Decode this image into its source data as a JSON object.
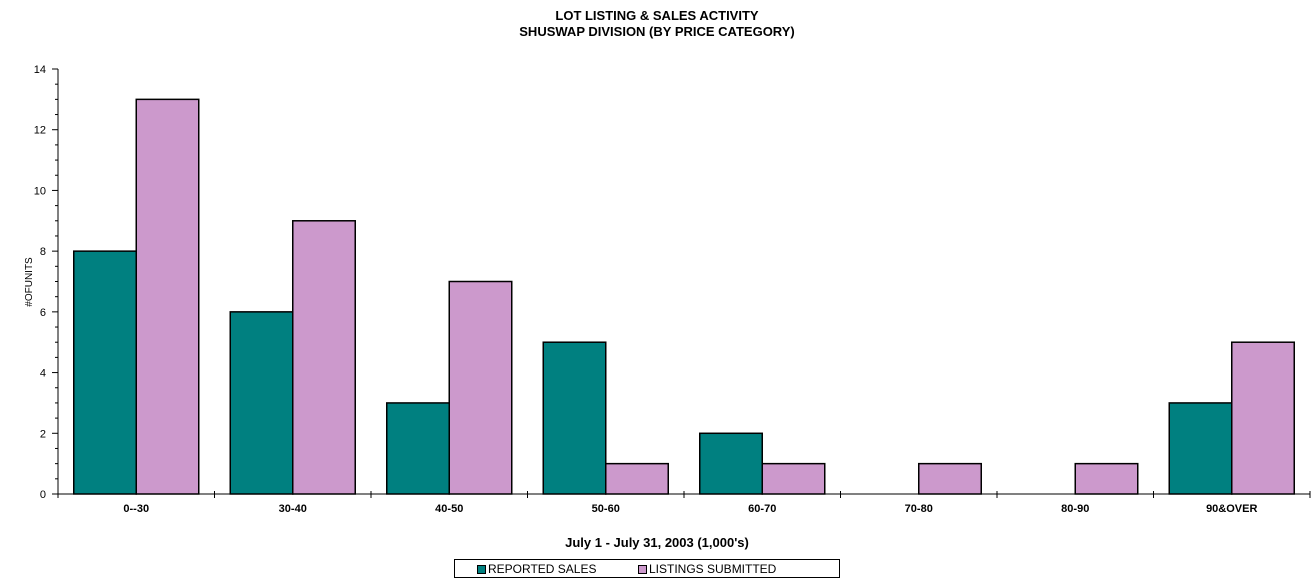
{
  "chart_data": {
    "type": "bar",
    "title": "LOT LISTING & SALES ACTIVITY",
    "subtitle": "SHUSWAP DIVISION (BY PRICE CATEGORY)",
    "xlabel": "July 1 - July 31, 2003 (1,000's)",
    "ylabel": "#OFUNITS",
    "ylim": [
      0,
      14
    ],
    "yticks": [
      0,
      2,
      4,
      6,
      8,
      10,
      12,
      14
    ],
    "categories": [
      "0--30",
      "30-40",
      "40-50",
      "50-60",
      "60-70",
      "70-80",
      "80-90",
      "90&OVER"
    ],
    "series": [
      {
        "name": "REPORTED SALES",
        "color": "#008080",
        "values": [
          8,
          6,
          3,
          5,
          2,
          0,
          0,
          3
        ]
      },
      {
        "name": "LISTINGS SUBMITTED",
        "color": "#cc99cc",
        "values": [
          13,
          9,
          7,
          1,
          1,
          1,
          1,
          5
        ]
      }
    ],
    "legend_position": "bottom",
    "grid": false
  }
}
